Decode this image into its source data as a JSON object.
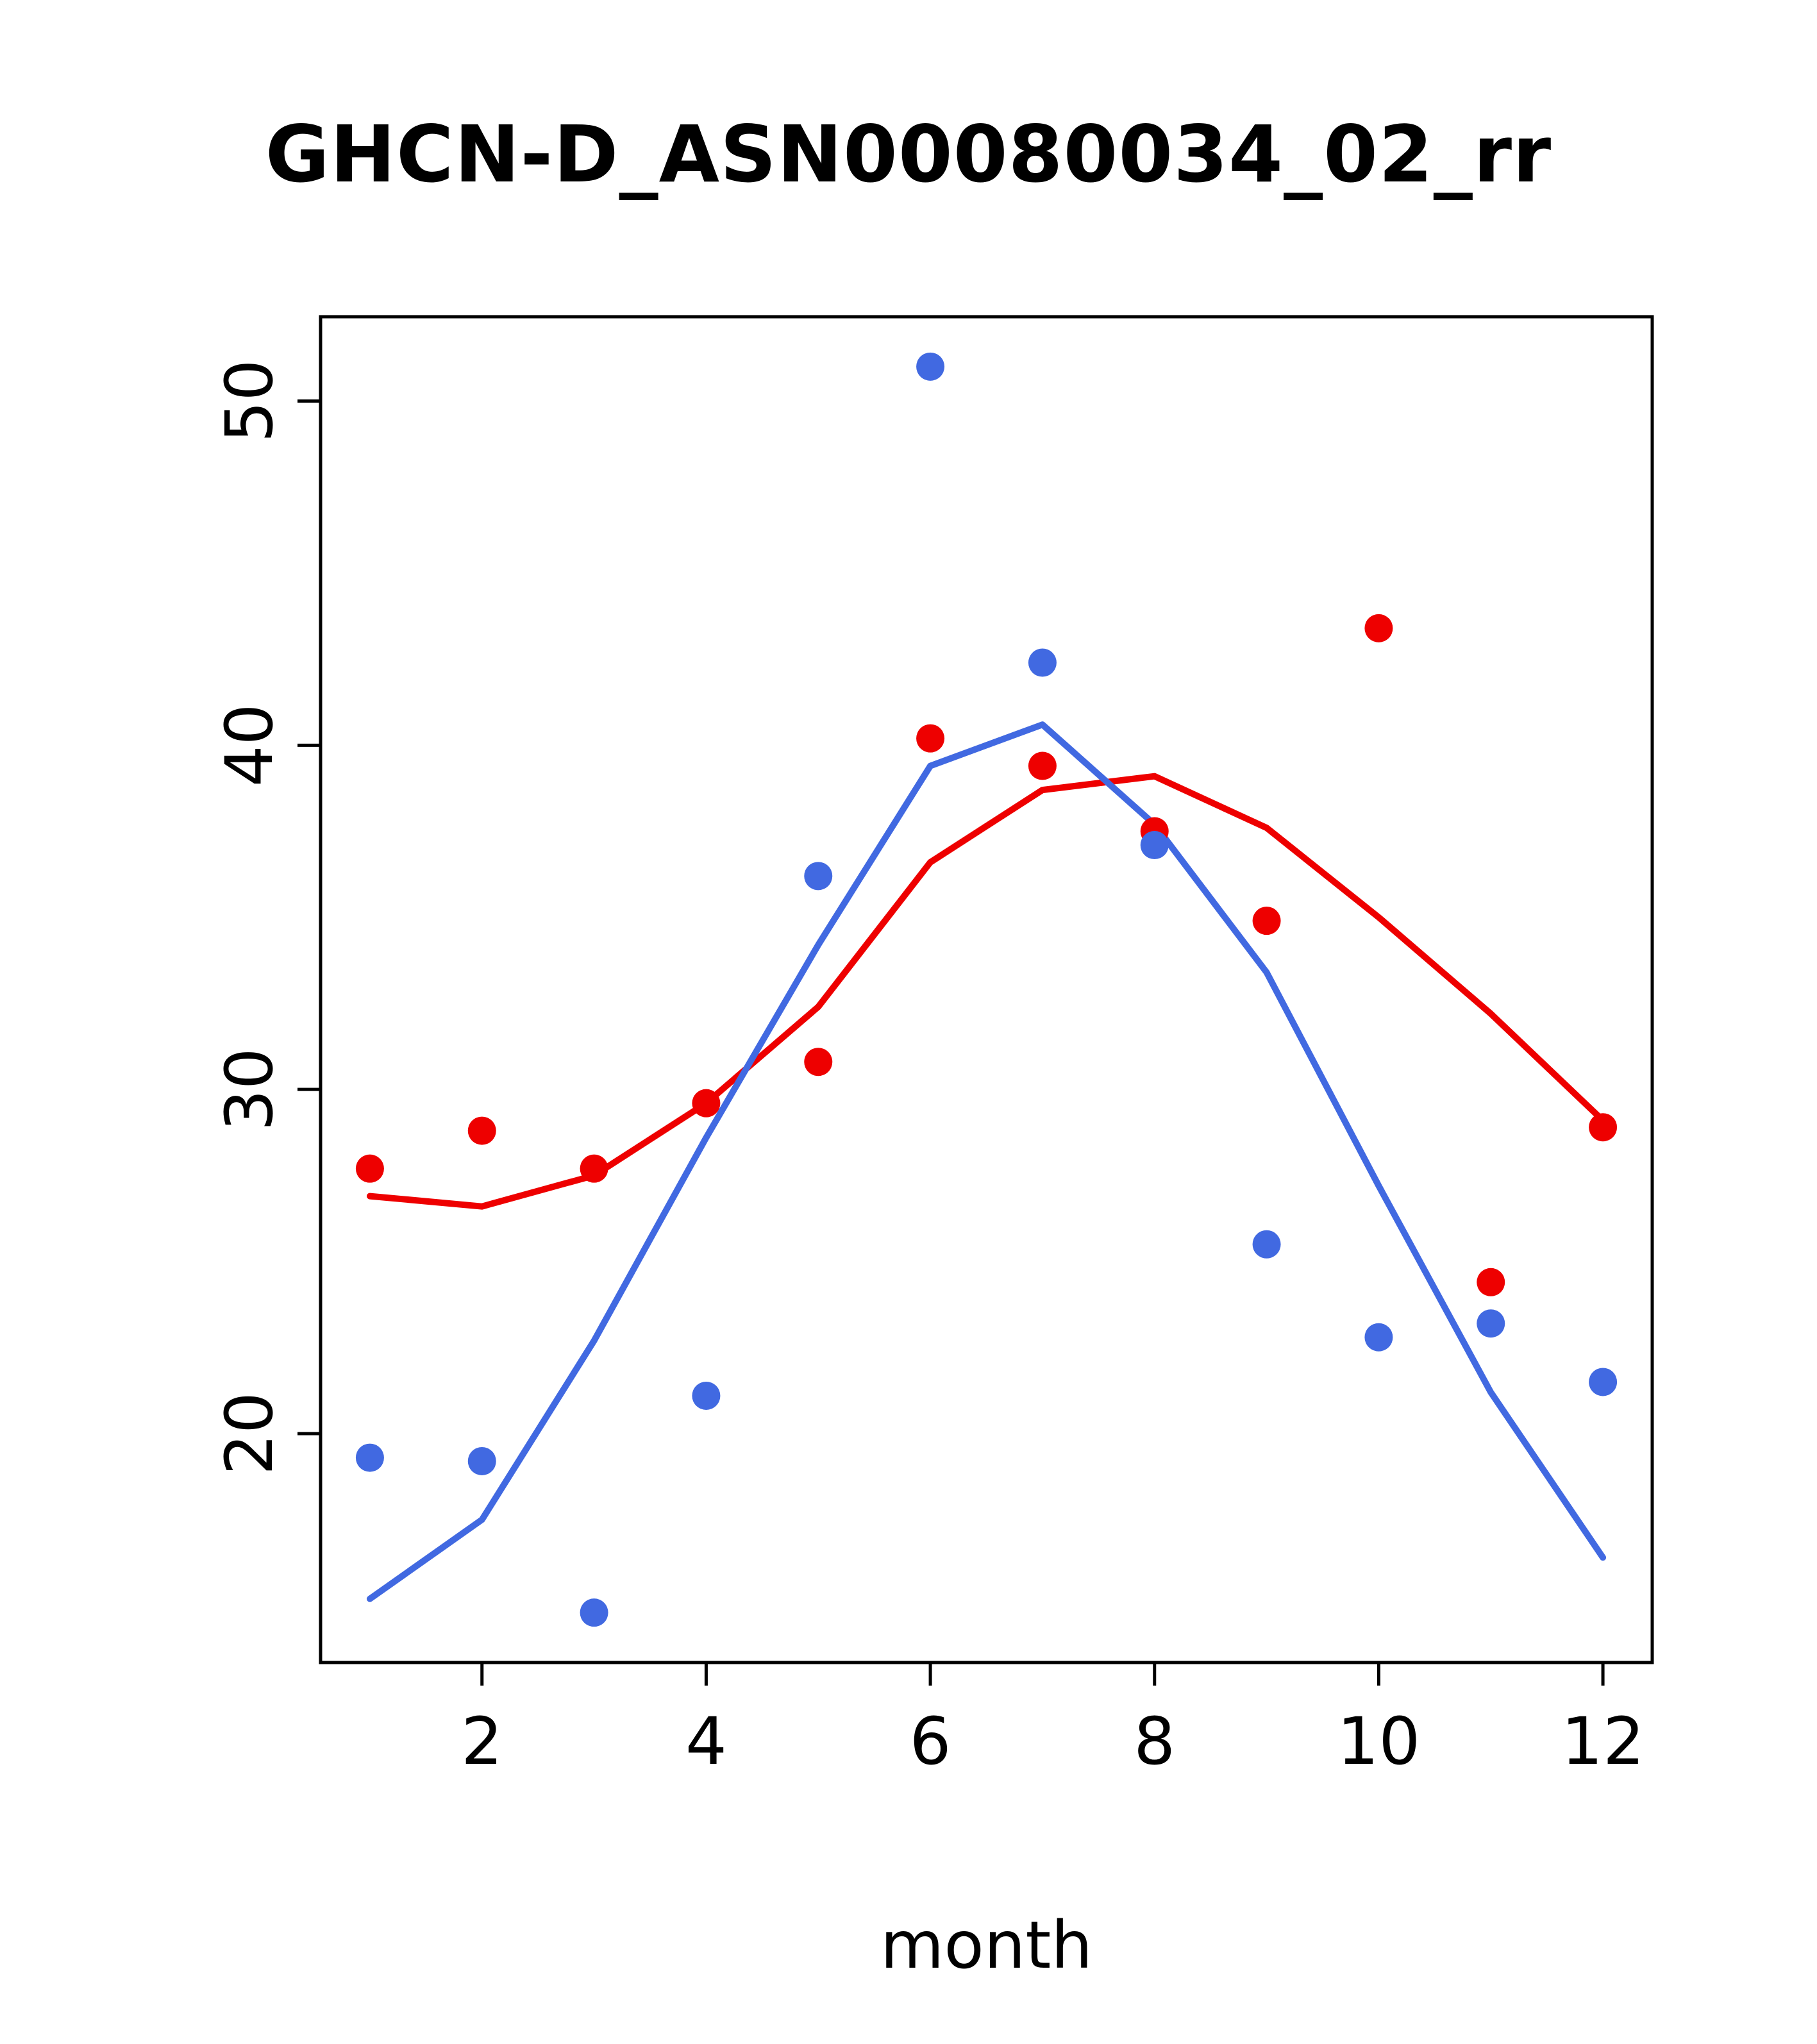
{
  "title": "GHCN-D_ASN00080034_02_rr",
  "chart_data": {
    "type": "scatter",
    "title": "GHCN-D_ASN00080034_02_rr",
    "xlabel": "month",
    "ylabel": "",
    "xlim": [
      0.56,
      12.44
    ],
    "ylim": [
      13.35,
      52.45
    ],
    "xticks": [
      2,
      4,
      6,
      8,
      10,
      12
    ],
    "yticks": [
      20,
      30,
      40,
      50
    ],
    "grid": false,
    "legend": "none",
    "x": [
      1,
      2,
      3,
      4,
      5,
      6,
      7,
      8,
      9,
      10,
      11,
      12
    ],
    "colors": {
      "red": "#ee0000",
      "blue": "#4169e1",
      "axis": "#000000"
    },
    "series": [
      {
        "name": "red-points",
        "kind": "points",
        "color": "#ee0000",
        "values": [
          27.7,
          28.8,
          27.7,
          29.6,
          30.8,
          40.2,
          39.4,
          37.5,
          34.9,
          43.4,
          24.4,
          28.9
        ]
      },
      {
        "name": "blue-points",
        "kind": "points",
        "color": "#4169e1",
        "values": [
          19.3,
          19.2,
          14.8,
          21.1,
          36.2,
          51.0,
          42.4,
          37.1,
          25.5,
          22.8,
          23.2,
          21.5
        ]
      },
      {
        "name": "red-smooth-line",
        "kind": "line",
        "color": "#ee0000",
        "values": [
          26.9,
          26.6,
          27.5,
          29.6,
          32.4,
          36.6,
          38.7,
          39.1,
          37.6,
          35.0,
          32.2,
          29.1
        ]
      },
      {
        "name": "blue-smooth-line",
        "kind": "line",
        "color": "#4169e1",
        "values": [
          15.2,
          17.5,
          22.7,
          28.6,
          34.2,
          39.4,
          40.6,
          37.7,
          33.4,
          27.2,
          21.2,
          16.4
        ]
      }
    ]
  }
}
